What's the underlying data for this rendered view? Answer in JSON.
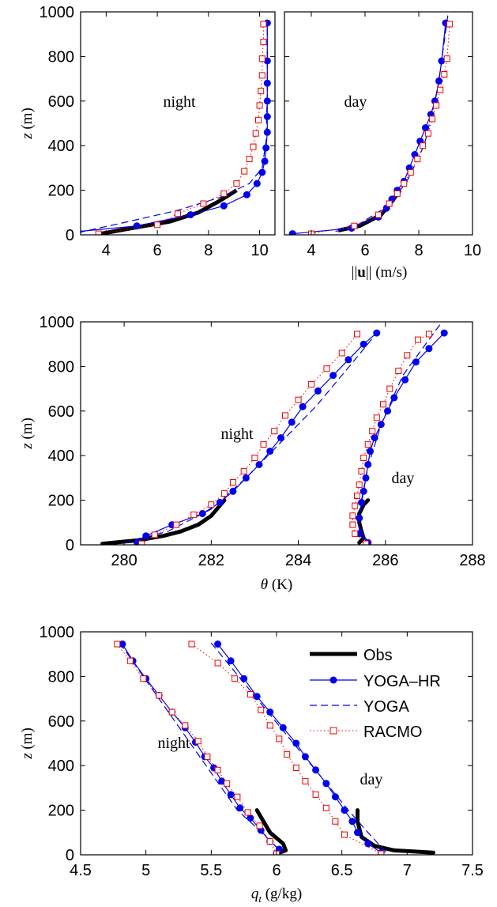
{
  "colors": {
    "obs": "#000000",
    "yoga_hr": "#0000ee",
    "yoga": "#0000ee",
    "racmo": "#ee0000"
  },
  "legend": {
    "obs": "Obs",
    "yoga_hr": "YOGA–HR",
    "yoga": "YOGA",
    "racmo": "RACMO"
  },
  "chart_data": [
    {
      "type": "line",
      "panel": "wind-night",
      "annotation": "night",
      "ylabel": "z (m)",
      "xlim": [
        3,
        10.6
      ],
      "ylim": [
        0,
        1000
      ],
      "xticks": [
        "4",
        "6",
        "8",
        "10"
      ],
      "yticks": [
        "0",
        "200",
        "400",
        "600",
        "800",
        "1000"
      ],
      "grid": false,
      "series": [
        {
          "name": "Obs",
          "x": [
            3.8,
            5.0,
            6.5,
            7.6,
            8.4,
            9.1
          ],
          "y": [
            5,
            30,
            60,
            100,
            150,
            200
          ]
        },
        {
          "name": "YOGA–HR",
          "x": [
            2.9,
            5.2,
            7.3,
            8.6,
            9.5,
            9.9,
            10.1,
            10.2,
            10.25,
            10.3,
            10.3,
            10.3,
            10.3,
            10.3,
            10.3
          ],
          "y": [
            15,
            40,
            90,
            130,
            180,
            230,
            280,
            330,
            390,
            460,
            530,
            600,
            680,
            780,
            950
          ]
        },
        {
          "name": "YOGA",
          "x": [
            2.9,
            4.5,
            6.8,
            8.5,
            9.6,
            10.1,
            10.25,
            10.3,
            10.3
          ],
          "y": [
            10,
            50,
            110,
            170,
            230,
            300,
            420,
            650,
            950
          ]
        },
        {
          "name": "RACMO",
          "x": [
            3.7,
            6.0,
            6.8,
            7.8,
            8.6,
            9.1,
            9.4,
            9.6,
            9.75,
            9.85,
            9.95,
            10.0,
            10.05,
            10.1,
            10.1,
            10.15,
            10.15
          ],
          "y": [
            5,
            45,
            95,
            140,
            185,
            230,
            285,
            340,
            395,
            455,
            515,
            580,
            645,
            715,
            790,
            865,
            945
          ]
        }
      ]
    },
    {
      "type": "line",
      "panel": "wind-day",
      "annotation": "day",
      "xlabel": "||u|| (m/s)",
      "xlim": [
        3,
        10
      ],
      "ylim": [
        0,
        1000
      ],
      "xticks": [
        "4",
        "6",
        "8",
        "10"
      ],
      "yticks": [],
      "grid": false,
      "series": [
        {
          "name": "Obs",
          "x": [
            5.0,
            5.8,
            6.6,
            7.0,
            7.3
          ],
          "y": [
            20,
            40,
            90,
            150,
            200
          ]
        },
        {
          "name": "YOGA–HR",
          "x": [
            3.3,
            5.5,
            6.5,
            6.8,
            7.0,
            7.2,
            7.45,
            7.65,
            7.85,
            8.05,
            8.25,
            8.45,
            8.6,
            8.75,
            8.85,
            9.0
          ],
          "y": [
            5,
            30,
            80,
            120,
            160,
            200,
            240,
            300,
            360,
            420,
            480,
            540,
            600,
            690,
            780,
            950
          ]
        },
        {
          "name": "YOGA",
          "x": [
            4.9,
            5.8,
            6.6,
            7.2,
            7.6,
            8.2,
            8.7,
            9.1
          ],
          "y": [
            15,
            50,
            110,
            180,
            250,
            400,
            650,
            1000
          ]
        },
        {
          "name": "RACMO",
          "x": [
            4.0,
            5.6,
            6.5,
            6.9,
            7.2,
            7.45,
            7.7,
            7.95,
            8.15,
            8.35,
            8.5,
            8.65,
            8.8,
            8.95,
            9.05,
            9.15
          ],
          "y": [
            5,
            40,
            90,
            140,
            185,
            230,
            280,
            340,
            400,
            455,
            520,
            580,
            650,
            720,
            790,
            945
          ]
        }
      ]
    },
    {
      "type": "line",
      "panel": "theta",
      "annotations": [
        "night",
        "day"
      ],
      "xlabel": "θ (K)",
      "ylabel": "z (m)",
      "xlim": [
        279,
        288
      ],
      "ylim": [
        0,
        1000
      ],
      "xticks": [
        "280",
        "282",
        "284",
        "286",
        "288"
      ],
      "yticks": [
        "0",
        "200",
        "400",
        "600",
        "800",
        "1000"
      ],
      "grid": false,
      "series": [
        {
          "name": "Obs",
          "x": [
            279.5,
            280.3,
            280.9,
            281.3,
            281.7,
            282.0,
            282.3,
            285.4,
            285.5,
            285.45,
            285.4,
            285.4,
            285.45,
            285.5,
            285.6
          ],
          "y": [
            5,
            20,
            40,
            60,
            90,
            130,
            200,
            10,
            30,
            60,
            100,
            140,
            160,
            180,
            200
          ]
        },
        {
          "name": "YOGA–HR night",
          "x": [
            280.3,
            280.5,
            281.1,
            281.8,
            282.2,
            282.5,
            282.8,
            283.1,
            283.35,
            283.6,
            283.85,
            284.1,
            284.45,
            284.8,
            285.15,
            285.5,
            285.8
          ],
          "y": [
            10,
            40,
            90,
            140,
            190,
            240,
            300,
            360,
            420,
            480,
            550,
            620,
            690,
            760,
            830,
            900,
            950
          ]
        },
        {
          "name": "YOGA–HR day",
          "x": [
            285.6,
            285.4,
            285.4,
            285.45,
            285.5,
            285.55,
            285.6,
            285.65,
            285.75,
            285.9,
            286.05,
            286.2,
            286.45,
            286.7,
            287.0,
            287.35
          ],
          "y": [
            10,
            50,
            120,
            190,
            240,
            300,
            360,
            420,
            480,
            540,
            600,
            660,
            740,
            820,
            880,
            950
          ]
        },
        {
          "name": "YOGA night",
          "x": [
            280.0,
            281.0,
            282.0,
            282.8,
            283.5,
            284.4,
            285.3,
            285.8
          ],
          "y": [
            10,
            60,
            160,
            300,
            440,
            620,
            830,
            950
          ]
        },
        {
          "name": "YOGA day",
          "x": [
            285.6,
            285.4,
            285.45,
            285.6,
            285.9,
            286.4,
            287.3
          ],
          "y": [
            10,
            80,
            200,
            350,
            540,
            760,
            1000
          ]
        },
        {
          "name": "RACMO night",
          "x": [
            280.4,
            280.7,
            281.2,
            281.6,
            282.0,
            282.3,
            282.5,
            282.75,
            283.0,
            283.2,
            283.45,
            283.7,
            284.0,
            284.3,
            284.65,
            285.0,
            285.35
          ],
          "y": [
            5,
            45,
            90,
            135,
            180,
            230,
            280,
            330,
            390,
            450,
            510,
            580,
            650,
            720,
            790,
            860,
            945
          ]
        },
        {
          "name": "RACMO day",
          "x": [
            285.55,
            285.3,
            285.25,
            285.25,
            285.3,
            285.35,
            285.4,
            285.45,
            285.5,
            285.6,
            285.7,
            285.8,
            285.95,
            286.1,
            286.3,
            286.5,
            286.75,
            287.0
          ],
          "y": [
            5,
            50,
            90,
            130,
            175,
            220,
            270,
            330,
            390,
            450,
            510,
            570,
            630,
            700,
            780,
            850,
            920,
            945
          ]
        }
      ]
    },
    {
      "type": "line",
      "panel": "qt",
      "annotations": [
        "night",
        "day"
      ],
      "xlabel": "q_t (g/kg)",
      "ylabel": "z (m)",
      "xlim": [
        4.5,
        7.5
      ],
      "ylim": [
        0,
        1000
      ],
      "xticks": [
        "4.5",
        "5",
        "5.5",
        "6",
        "6.5",
        "7",
        "7.5"
      ],
      "yticks": [
        "0",
        "200",
        "400",
        "600",
        "800",
        "1000"
      ],
      "legend": "top-right",
      "grid": false,
      "series": [
        {
          "name": "Obs",
          "x": [
            5.85,
            5.95,
            6.05,
            6.07,
            6.0,
            6.62,
            6.62,
            6.65,
            6.75,
            6.9,
            7.2
          ],
          "y": [
            200,
            100,
            50,
            20,
            5,
            200,
            150,
            80,
            40,
            20,
            10
          ]
        },
        {
          "name": "YOGA–HR night",
          "x": [
            4.82,
            4.9,
            5.0,
            5.1,
            5.2,
            5.3,
            5.38,
            5.45,
            5.52,
            5.58,
            5.65,
            5.72,
            5.8,
            5.88,
            5.95,
            6.02,
            6.0
          ],
          "y": [
            945,
            870,
            790,
            715,
            640,
            570,
            505,
            440,
            390,
            330,
            270,
            210,
            165,
            110,
            60,
            25,
            5
          ]
        },
        {
          "name": "YOGA–HR day",
          "x": [
            5.55,
            5.65,
            5.75,
            5.85,
            5.95,
            6.05,
            6.15,
            6.22,
            6.3,
            6.38,
            6.45,
            6.52,
            6.58,
            6.62,
            6.7,
            6.8
          ],
          "y": [
            945,
            870,
            790,
            710,
            640,
            570,
            500,
            440,
            380,
            320,
            260,
            200,
            150,
            100,
            50,
            10
          ]
        },
        {
          "name": "YOGA night",
          "x": [
            4.8,
            5.1,
            5.4,
            5.7,
            5.85,
            6.05
          ],
          "y": [
            950,
            700,
            450,
            200,
            120,
            5
          ]
        },
        {
          "name": "YOGA day",
          "x": [
            5.5,
            5.85,
            6.2,
            6.55,
            6.7,
            6.85
          ],
          "y": [
            950,
            700,
            450,
            200,
            100,
            5
          ]
        },
        {
          "name": "RACMO night",
          "x": [
            4.78,
            4.88,
            4.98,
            5.1,
            5.2,
            5.3,
            5.4,
            5.47,
            5.55,
            5.62,
            5.7,
            5.78,
            5.87,
            5.95,
            6.0
          ],
          "y": [
            945,
            870,
            790,
            715,
            640,
            580,
            510,
            440,
            380,
            320,
            260,
            190,
            130,
            60,
            5
          ]
        },
        {
          "name": "RACMO day",
          "x": [
            5.35,
            5.55,
            5.68,
            5.8,
            5.88,
            5.95,
            6.02,
            6.08,
            6.15,
            6.22,
            6.3,
            6.38,
            6.45,
            6.52,
            6.8
          ],
          "y": [
            945,
            860,
            790,
            720,
            650,
            580,
            520,
            450,
            390,
            330,
            270,
            210,
            150,
            90,
            5
          ]
        }
      ]
    }
  ]
}
